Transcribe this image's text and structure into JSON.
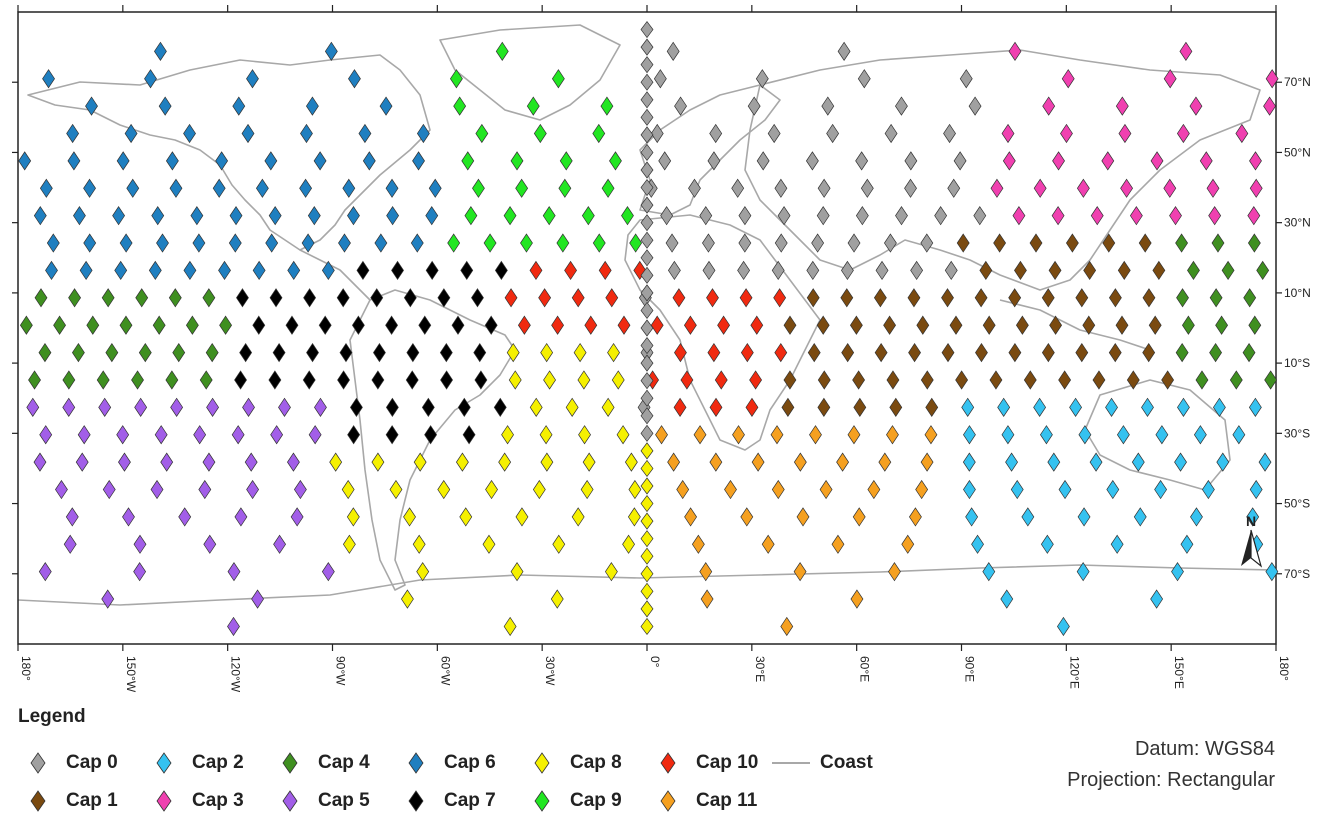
{
  "map": {
    "lon_labels": [
      "180°",
      "150°W",
      "120°W",
      "90°W",
      "60°W",
      "30°W",
      "0°",
      "30°E",
      "60°E",
      "90°E",
      "120°E",
      "150°E",
      "180°"
    ],
    "lat_labels": [
      "70°N",
      "50°N",
      "30°N",
      "10°N",
      "10°S",
      "30°S",
      "50°S",
      "70°S"
    ],
    "north_label": "N"
  },
  "legend": {
    "title": "Legend",
    "items": [
      {
        "label": "Cap 0",
        "color": "#a0a0a0"
      },
      {
        "label": "Cap 1",
        "color": "#7a4a10"
      },
      {
        "label": "Cap 2",
        "color": "#35c2f0"
      },
      {
        "label": "Cap 3",
        "color": "#f040b0"
      },
      {
        "label": "Cap 4",
        "color": "#3f8f20"
      },
      {
        "label": "Cap 5",
        "color": "#a25ee8"
      },
      {
        "label": "Cap 6",
        "color": "#1f7fc0"
      },
      {
        "label": "Cap 7",
        "color": "#000000"
      },
      {
        "label": "Cap 8",
        "color": "#f5f000"
      },
      {
        "label": "Cap 9",
        "color": "#22e622"
      },
      {
        "label": "Cap 10",
        "color": "#f02a10"
      },
      {
        "label": "Cap 11",
        "color": "#f5a020"
      }
    ],
    "coast_label": "Coast"
  },
  "info": {
    "datum": "Datum: WGS84",
    "projection": "Projection: Rectangular"
  }
}
